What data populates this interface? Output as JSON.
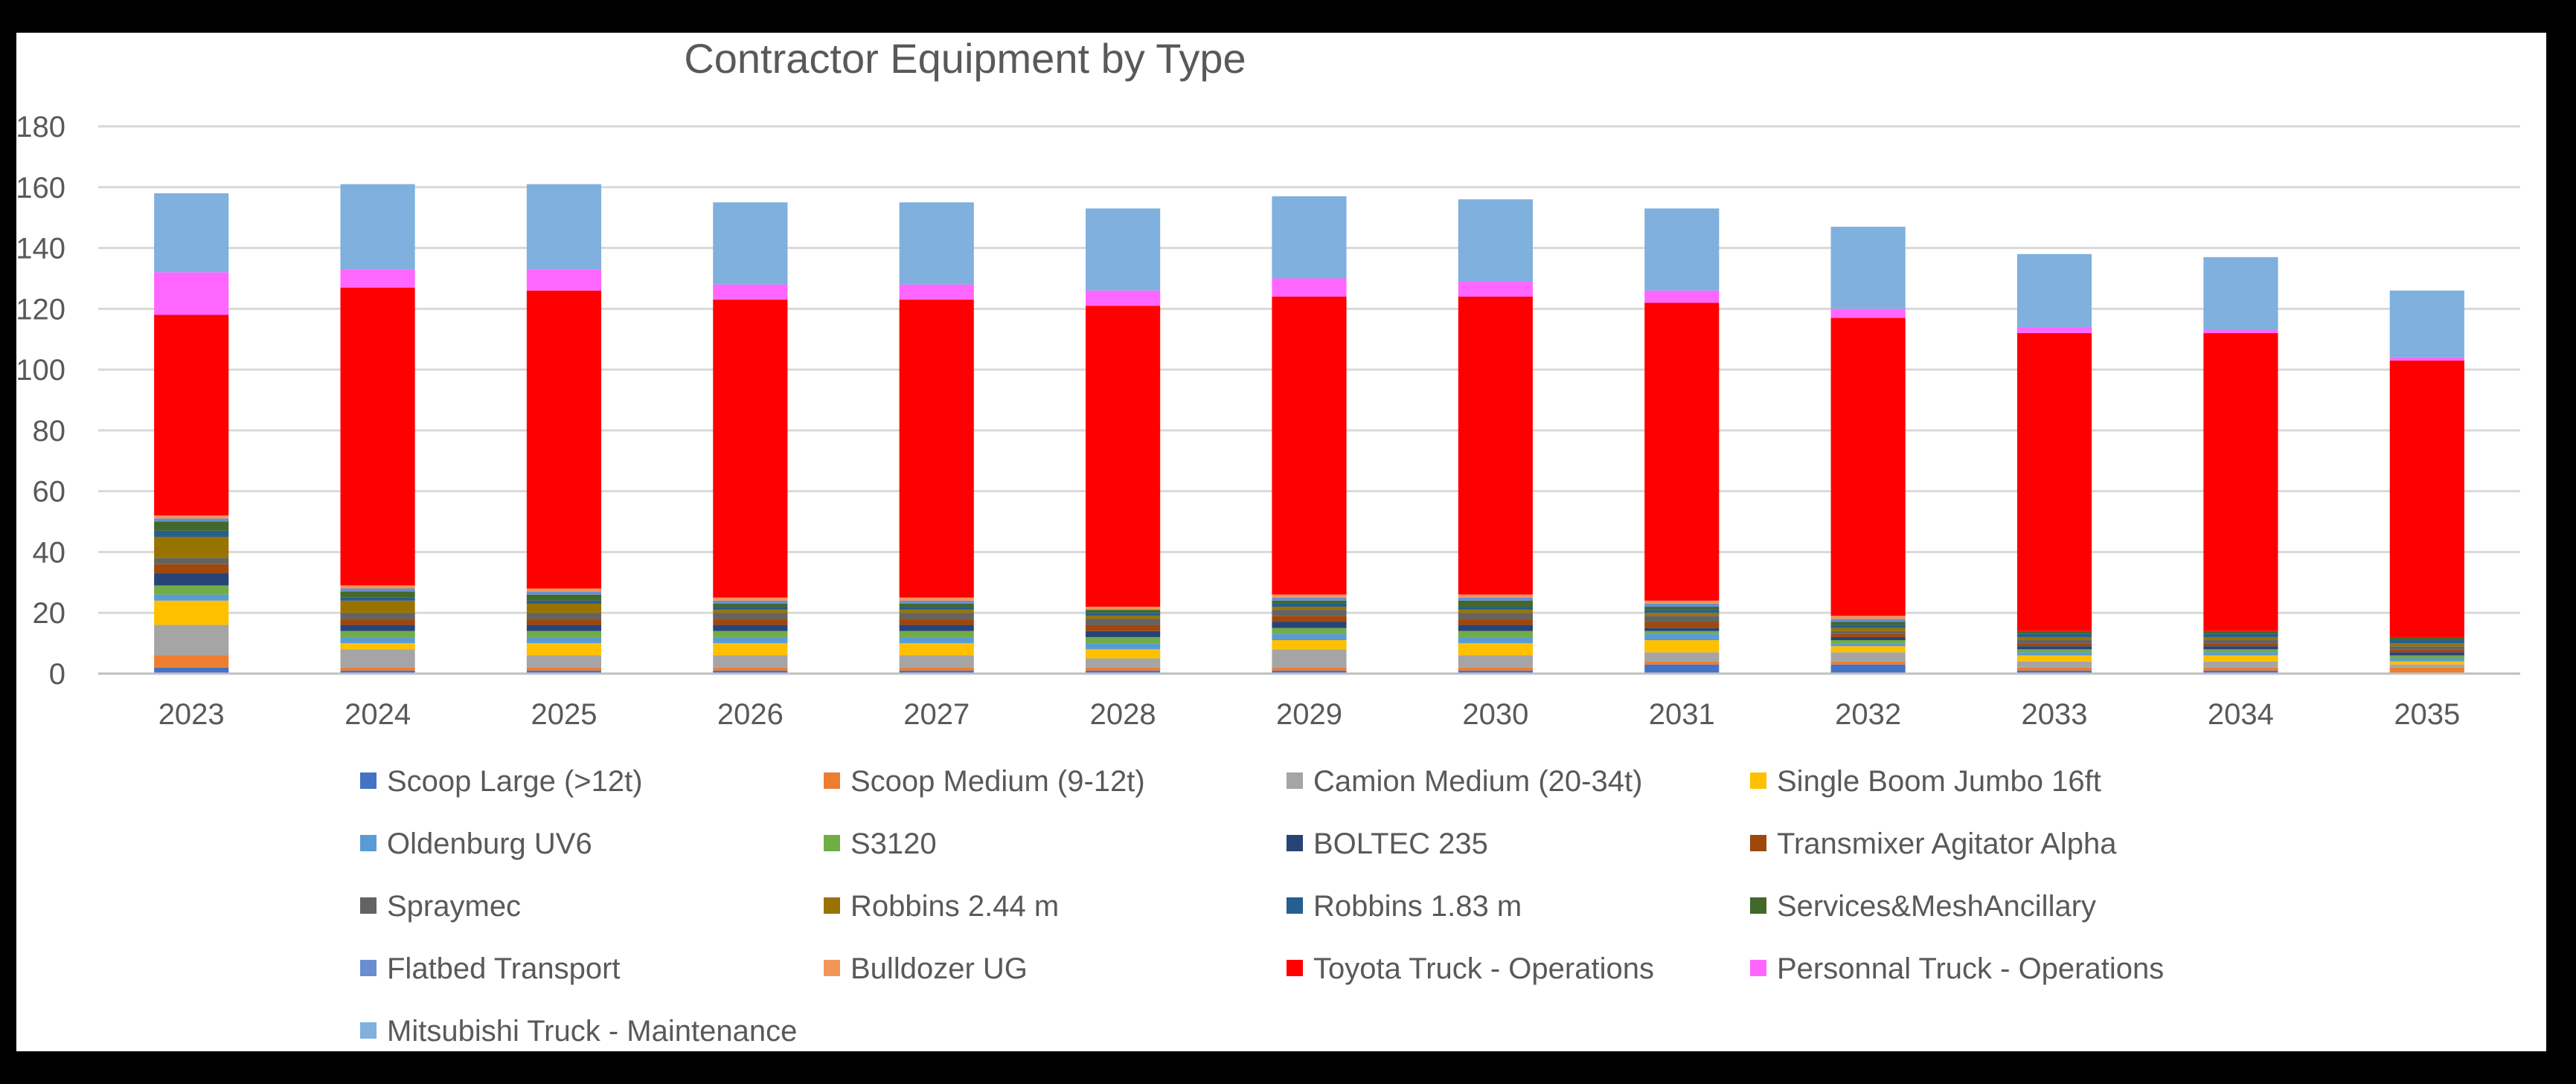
{
  "chart_data": {
    "type": "bar",
    "stacked": true,
    "title": "Contractor Equipment by Type",
    "xlabel": "",
    "ylabel": "",
    "ylim": [
      0,
      180
    ],
    "yticks": [
      0,
      20,
      40,
      60,
      80,
      100,
      120,
      140,
      160,
      180
    ],
    "grid": true,
    "legend_position": "bottom",
    "categories": [
      "2023",
      "2024",
      "2025",
      "2026",
      "2027",
      "2028",
      "2029",
      "2030",
      "2031",
      "2032",
      "2033",
      "2034",
      "2035"
    ],
    "series": [
      {
        "name": "Scoop Large (>12t)",
        "color": "#4472C4",
        "values": [
          2,
          1,
          1,
          1,
          1,
          1,
          1,
          1,
          3,
          3,
          1,
          1,
          0
        ]
      },
      {
        "name": "Scoop Medium (9-12t)",
        "color": "#ED7D31",
        "values": [
          4,
          1,
          1,
          1,
          1,
          1,
          1,
          1,
          1,
          1,
          1,
          1,
          2
        ]
      },
      {
        "name": "Camion Medium (20-34t)",
        "color": "#A5A5A5",
        "values": [
          10,
          6,
          4,
          4,
          4,
          3,
          6,
          4,
          3,
          3,
          2,
          2,
          1
        ]
      },
      {
        "name": "Single Boom Jumbo 16ft",
        "color": "#FFC000",
        "values": [
          8,
          2,
          4,
          4,
          4,
          3,
          3,
          4,
          4,
          2,
          2,
          2,
          1
        ]
      },
      {
        "name": "Oldenburg UV6",
        "color": "#5B9BD5",
        "values": [
          2,
          2,
          2,
          2,
          2,
          2,
          2,
          2,
          2,
          1,
          1,
          1,
          1
        ]
      },
      {
        "name": "S3120",
        "color": "#70AD47",
        "values": [
          3,
          2,
          2,
          2,
          2,
          2,
          2,
          2,
          1,
          1,
          1,
          1,
          1
        ]
      },
      {
        "name": "BOLTEC 235",
        "color": "#264478",
        "values": [
          4,
          2,
          2,
          2,
          2,
          2,
          2,
          2,
          1,
          1,
          1,
          1,
          1
        ]
      },
      {
        "name": "Transmixer Agitator Alpha",
        "color": "#9E480E",
        "values": [
          3,
          2,
          2,
          2,
          2,
          2,
          2,
          2,
          2,
          1,
          1,
          1,
          1
        ]
      },
      {
        "name": "Spraymec",
        "color": "#636363",
        "values": [
          2,
          2,
          2,
          2,
          2,
          2,
          2,
          2,
          2,
          1,
          1,
          1,
          1
        ]
      },
      {
        "name": "Robbins 2.44 m",
        "color": "#997300",
        "values": [
          7,
          4,
          3,
          1,
          1,
          1,
          1,
          1,
          1,
          1,
          1,
          1,
          1
        ]
      },
      {
        "name": "Robbins 1.83 m",
        "color": "#255E91",
        "values": [
          2,
          1,
          1,
          1,
          1,
          1,
          1,
          1,
          1,
          1,
          1,
          1,
          1
        ]
      },
      {
        "name": "Services&MeshAncillary",
        "color": "#43682B",
        "values": [
          3,
          2,
          2,
          1,
          1,
          1,
          1,
          2,
          1,
          1,
          1,
          1,
          1
        ]
      },
      {
        "name": "Flatbed Transport",
        "color": "#698ED0",
        "values": [
          1,
          1,
          1,
          1,
          1,
          0,
          1,
          1,
          1,
          1,
          0,
          0,
          0
        ]
      },
      {
        "name": "Bulldozer UG",
        "color": "#F1975A",
        "values": [
          1,
          1,
          1,
          1,
          1,
          1,
          1,
          1,
          1,
          1,
          0,
          0,
          0
        ]
      },
      {
        "name": "Toyota Truck - Operations",
        "color": "#FF0000",
        "values": [
          66,
          98,
          98,
          98,
          98,
          99,
          98,
          98,
          98,
          98,
          98,
          98,
          91
        ]
      },
      {
        "name": "Personnal Truck - Operations",
        "color": "#FF66FF",
        "values": [
          14,
          6,
          7,
          5,
          5,
          5,
          6,
          5,
          4,
          3,
          2,
          1,
          1
        ]
      },
      {
        "name": "Mitsubishi Truck - Maintenance",
        "color": "#7FB0DE",
        "values": [
          26,
          28,
          28,
          27,
          27,
          27,
          27,
          27,
          27,
          27,
          24,
          24,
          22
        ]
      }
    ]
  }
}
